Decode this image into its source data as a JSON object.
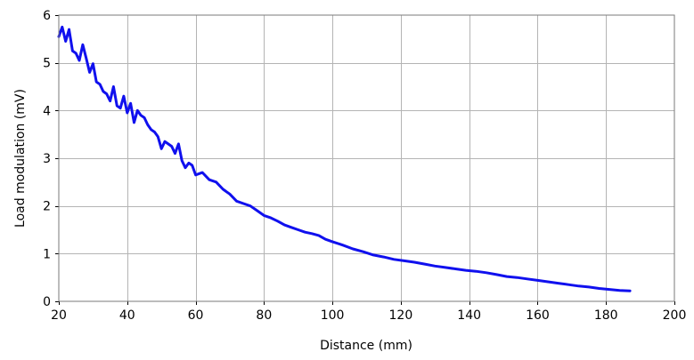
{
  "chart_data": {
    "type": "line",
    "title": "",
    "xlabel": "Distance (mm)",
    "ylabel": "Load modulation (mV)",
    "xlim": [
      20,
      200
    ],
    "ylim": [
      0,
      6
    ],
    "xticks": [
      "20",
      "40",
      "60",
      "80",
      "100",
      "120",
      "140",
      "160",
      "180",
      "200"
    ],
    "yticks": [
      "0",
      "1",
      "2",
      "3",
      "4",
      "5",
      "6"
    ],
    "grid": true,
    "legend": "none",
    "series": [
      {
        "color": "#1010ee",
        "x": [
          20,
          21,
          22,
          23,
          24,
          25,
          26,
          27,
          28,
          29,
          30,
          31,
          32,
          33,
          34,
          35,
          36,
          37,
          38,
          39,
          40,
          41,
          42,
          43,
          44,
          45,
          46,
          47,
          48,
          49,
          50,
          51,
          52,
          53,
          54,
          55,
          56,
          57,
          58,
          59,
          60,
          62,
          64,
          66,
          68,
          70,
          72,
          74,
          76,
          78,
          80,
          82,
          84,
          86,
          88,
          90,
          92,
          94,
          96,
          98,
          100,
          103,
          106,
          109,
          112,
          115,
          118,
          121,
          124,
          127,
          130,
          133,
          136,
          139,
          142,
          145,
          148,
          151,
          154,
          157,
          160,
          163,
          166,
          169,
          172,
          175,
          178,
          181,
          184,
          187
        ],
        "y": [
          5.55,
          5.75,
          5.45,
          5.7,
          5.25,
          5.2,
          5.05,
          5.38,
          5.1,
          4.8,
          4.98,
          4.6,
          4.55,
          4.4,
          4.35,
          4.2,
          4.5,
          4.1,
          4.05,
          4.3,
          3.95,
          4.15,
          3.75,
          4.0,
          3.9,
          3.85,
          3.7,
          3.6,
          3.55,
          3.45,
          3.2,
          3.35,
          3.3,
          3.25,
          3.1,
          3.3,
          2.95,
          2.8,
          2.9,
          2.85,
          2.65,
          2.7,
          2.55,
          2.5,
          2.35,
          2.25,
          2.1,
          2.05,
          2.0,
          1.9,
          1.8,
          1.75,
          1.68,
          1.6,
          1.55,
          1.5,
          1.45,
          1.42,
          1.38,
          1.3,
          1.25,
          1.18,
          1.1,
          1.04,
          0.97,
          0.93,
          0.88,
          0.85,
          0.82,
          0.78,
          0.74,
          0.71,
          0.68,
          0.65,
          0.63,
          0.6,
          0.56,
          0.52,
          0.5,
          0.47,
          0.44,
          0.41,
          0.38,
          0.35,
          0.32,
          0.3,
          0.27,
          0.25,
          0.23,
          0.22
        ]
      }
    ]
  }
}
